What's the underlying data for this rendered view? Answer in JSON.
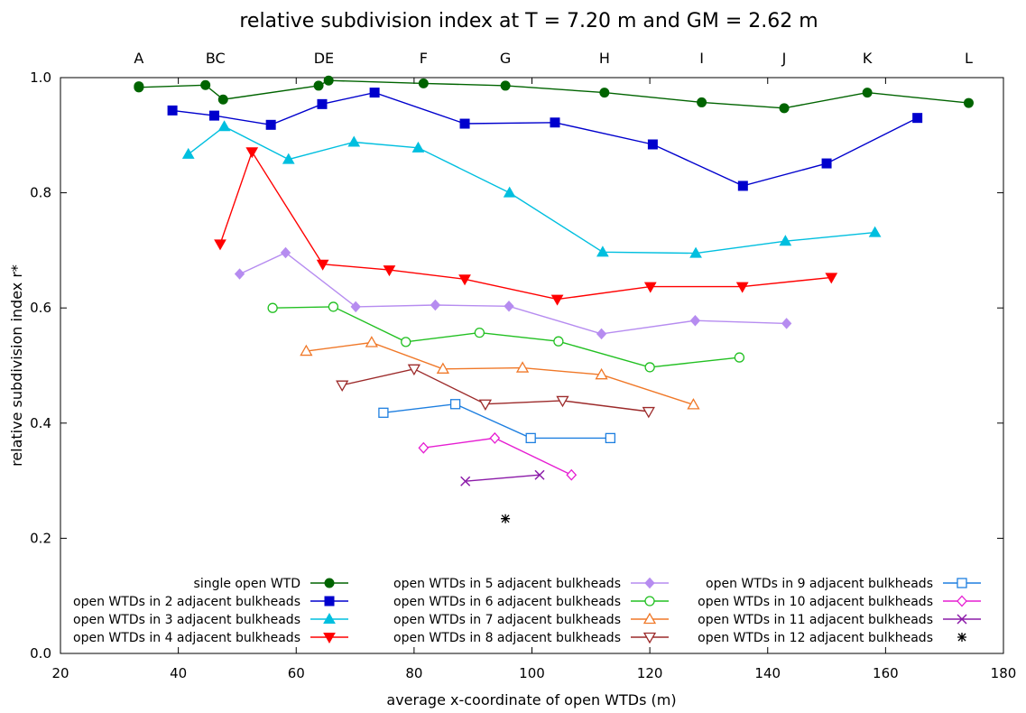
{
  "chart_data": {
    "type": "line",
    "title": "relative subdivision index at T = 7.20 m and GM = 2.62 m",
    "xlabel": "average x-coordinate of open WTDs (m)",
    "ylabel": "relative subdivision index r*",
    "xlim": [
      20,
      180
    ],
    "ylim": [
      0.0,
      1.0
    ],
    "xticks": [
      "20",
      "40",
      "60",
      "80",
      "100",
      "120",
      "140",
      "160",
      "180"
    ],
    "yticks": [
      "0.0",
      "0.2",
      "0.4",
      "0.6",
      "0.8",
      "1.0"
    ],
    "grid": false,
    "legend_position": "bottom",
    "top_labels": [
      {
        "text": "A",
        "x": 33.3
      },
      {
        "text": "BC",
        "x": 46.3
      },
      {
        "text": "DE",
        "x": 64.7
      },
      {
        "text": "F",
        "x": 81.6
      },
      {
        "text": "G",
        "x": 95.5
      },
      {
        "text": "H",
        "x": 112.3
      },
      {
        "text": "I",
        "x": 128.8
      },
      {
        "text": "J",
        "x": 142.8
      },
      {
        "text": "K",
        "x": 156.9
      },
      {
        "text": "L",
        "x": 174.1
      }
    ],
    "series": [
      {
        "name": "single open WTD",
        "color": "#006400",
        "marker": "circle",
        "filled": true,
        "lines": true,
        "points": [
          [
            33.3,
            0.985
          ],
          [
            33.3,
            0.983
          ],
          [
            44.6,
            0.987
          ],
          [
            47.6,
            0.962
          ],
          [
            63.8,
            0.986
          ],
          [
            65.5,
            0.995
          ],
          [
            81.6,
            0.99
          ],
          [
            95.5,
            0.986
          ],
          [
            112.3,
            0.974
          ],
          [
            128.8,
            0.957
          ],
          [
            142.8,
            0.947
          ],
          [
            156.9,
            0.974
          ],
          [
            174.1,
            0.956
          ]
        ]
      },
      {
        "name": "open WTDs in 2 adjacent bulkheads",
        "color": "#0000CD",
        "marker": "square",
        "filled": true,
        "lines": true,
        "points": [
          [
            39.0,
            0.943
          ],
          [
            46.1,
            0.934
          ],
          [
            55.7,
            0.918
          ],
          [
            64.4,
            0.954
          ],
          [
            73.3,
            0.974
          ],
          [
            88.6,
            0.92
          ],
          [
            103.9,
            0.922
          ],
          [
            120.5,
            0.884
          ],
          [
            135.8,
            0.812
          ],
          [
            150.0,
            0.851
          ],
          [
            165.4,
            0.93
          ]
        ]
      },
      {
        "name": "open WTDs in 3 adjacent bulkheads",
        "color": "#00BFDF",
        "marker": "triangle-up",
        "filled": true,
        "lines": true,
        "points": [
          [
            41.7,
            0.867
          ],
          [
            47.8,
            0.915
          ],
          [
            58.7,
            0.858
          ],
          [
            69.8,
            0.888
          ],
          [
            80.7,
            0.878
          ],
          [
            96.2,
            0.8
          ],
          [
            112.0,
            0.697
          ],
          [
            127.8,
            0.695
          ],
          [
            143.0,
            0.716
          ],
          [
            158.2,
            0.731
          ]
        ]
      },
      {
        "name": "open WTDs in 4 adjacent bulkheads",
        "color": "#FF0000",
        "marker": "triangle-down",
        "filled": true,
        "lines": true,
        "points": [
          [
            47.1,
            0.711
          ],
          [
            52.5,
            0.871
          ],
          [
            64.5,
            0.676
          ],
          [
            75.8,
            0.666
          ],
          [
            88.6,
            0.65
          ],
          [
            104.3,
            0.615
          ],
          [
            120.1,
            0.637
          ],
          [
            135.7,
            0.637
          ],
          [
            150.8,
            0.653
          ]
        ]
      },
      {
        "name": "open WTDs in 5 adjacent bulkheads",
        "color": "#B68CF0",
        "marker": "diamond",
        "filled": true,
        "lines": true,
        "points": [
          [
            50.4,
            0.659
          ],
          [
            58.2,
            0.696
          ],
          [
            70.1,
            0.602
          ],
          [
            83.6,
            0.605
          ],
          [
            96.1,
            0.603
          ],
          [
            111.8,
            0.555
          ],
          [
            127.7,
            0.578
          ],
          [
            143.2,
            0.573
          ]
        ]
      },
      {
        "name": "open WTDs in 6 adjacent bulkheads",
        "color": "#22C022",
        "marker": "circle",
        "filled": false,
        "lines": true,
        "points": [
          [
            56.0,
            0.6
          ],
          [
            66.3,
            0.602
          ],
          [
            78.6,
            0.541
          ],
          [
            91.1,
            0.557
          ],
          [
            104.5,
            0.542
          ],
          [
            120.0,
            0.497
          ],
          [
            135.2,
            0.514
          ]
        ]
      },
      {
        "name": "open WTDs in 7 adjacent bulkheads",
        "color": "#F07828",
        "marker": "triangle-up",
        "filled": false,
        "lines": true,
        "points": [
          [
            61.7,
            0.525
          ],
          [
            72.8,
            0.54
          ],
          [
            84.9,
            0.494
          ],
          [
            98.4,
            0.496
          ],
          [
            111.8,
            0.484
          ],
          [
            127.4,
            0.432
          ]
        ]
      },
      {
        "name": "open WTDs in 8 adjacent bulkheads",
        "color": "#9C2A2A",
        "marker": "triangle-down",
        "filled": false,
        "lines": true,
        "points": [
          [
            67.8,
            0.466
          ],
          [
            80.0,
            0.494
          ],
          [
            92.1,
            0.433
          ],
          [
            105.2,
            0.439
          ],
          [
            119.8,
            0.42
          ]
        ]
      },
      {
        "name": "open WTDs in 9 adjacent bulkheads",
        "color": "#1E7FE0",
        "marker": "square",
        "filled": false,
        "lines": true,
        "points": [
          [
            74.8,
            0.418
          ],
          [
            87.0,
            0.433
          ],
          [
            99.8,
            0.374
          ],
          [
            113.3,
            0.374
          ]
        ]
      },
      {
        "name": "open WTDs in 10 adjacent bulkheads",
        "color": "#E61ED2",
        "marker": "diamond",
        "filled": false,
        "lines": true,
        "points": [
          [
            81.6,
            0.357
          ],
          [
            93.7,
            0.374
          ],
          [
            106.7,
            0.31
          ]
        ]
      },
      {
        "name": "open WTDs in 11 adjacent bulkheads",
        "color": "#8B1AA8",
        "marker": "x",
        "filled": false,
        "lines": true,
        "points": [
          [
            88.7,
            0.299
          ],
          [
            101.3,
            0.31
          ]
        ]
      },
      {
        "name": "open WTDs in 12 adjacent bulkheads",
        "color": "#000000",
        "marker": "star",
        "filled": false,
        "lines": false,
        "points": [
          [
            95.5,
            0.234
          ]
        ]
      }
    ]
  }
}
